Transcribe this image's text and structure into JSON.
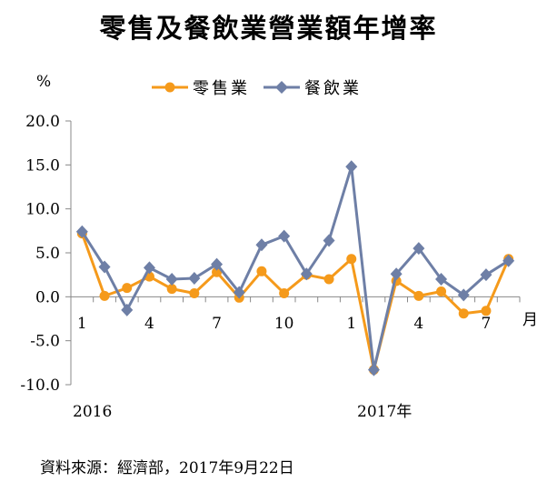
{
  "chart_data": {
    "type": "line",
    "title": "零售及餐飲業營業額年增率",
    "ylabel": "%",
    "xunit": "月",
    "ylim": [
      -10,
      20
    ],
    "yticks": [
      "20.0",
      "15.0",
      "10.0",
      "5.0",
      "0.0",
      "-5.0",
      "-10.0"
    ],
    "xtick_labels": [
      "1",
      "4",
      "7",
      "10",
      "1",
      "4",
      "7"
    ],
    "year_labels": [
      "2016",
      "2017年"
    ],
    "legend_position": "top",
    "grid": false,
    "series": [
      {
        "name": "零售業",
        "color": "#F59A1B",
        "marker": "circle",
        "values": [
          7.2,
          0.1,
          1.0,
          2.3,
          0.9,
          0.4,
          2.8,
          -0.1,
          2.9,
          0.4,
          2.5,
          2.0,
          4.3,
          -8.3,
          1.8,
          0.1,
          0.6,
          -1.9,
          -1.6,
          4.3
        ]
      },
      {
        "name": "餐飲業",
        "color": "#6E7FA6",
        "marker": "diamond",
        "values": [
          7.4,
          3.4,
          -1.5,
          3.3,
          2.0,
          2.1,
          3.7,
          0.5,
          5.9,
          6.9,
          2.6,
          6.4,
          14.8,
          -8.3,
          2.6,
          5.5,
          2.0,
          0.2,
          2.5,
          4.1
        ]
      }
    ]
  },
  "source_note": "資料來源：經濟部，2017年9月22日"
}
